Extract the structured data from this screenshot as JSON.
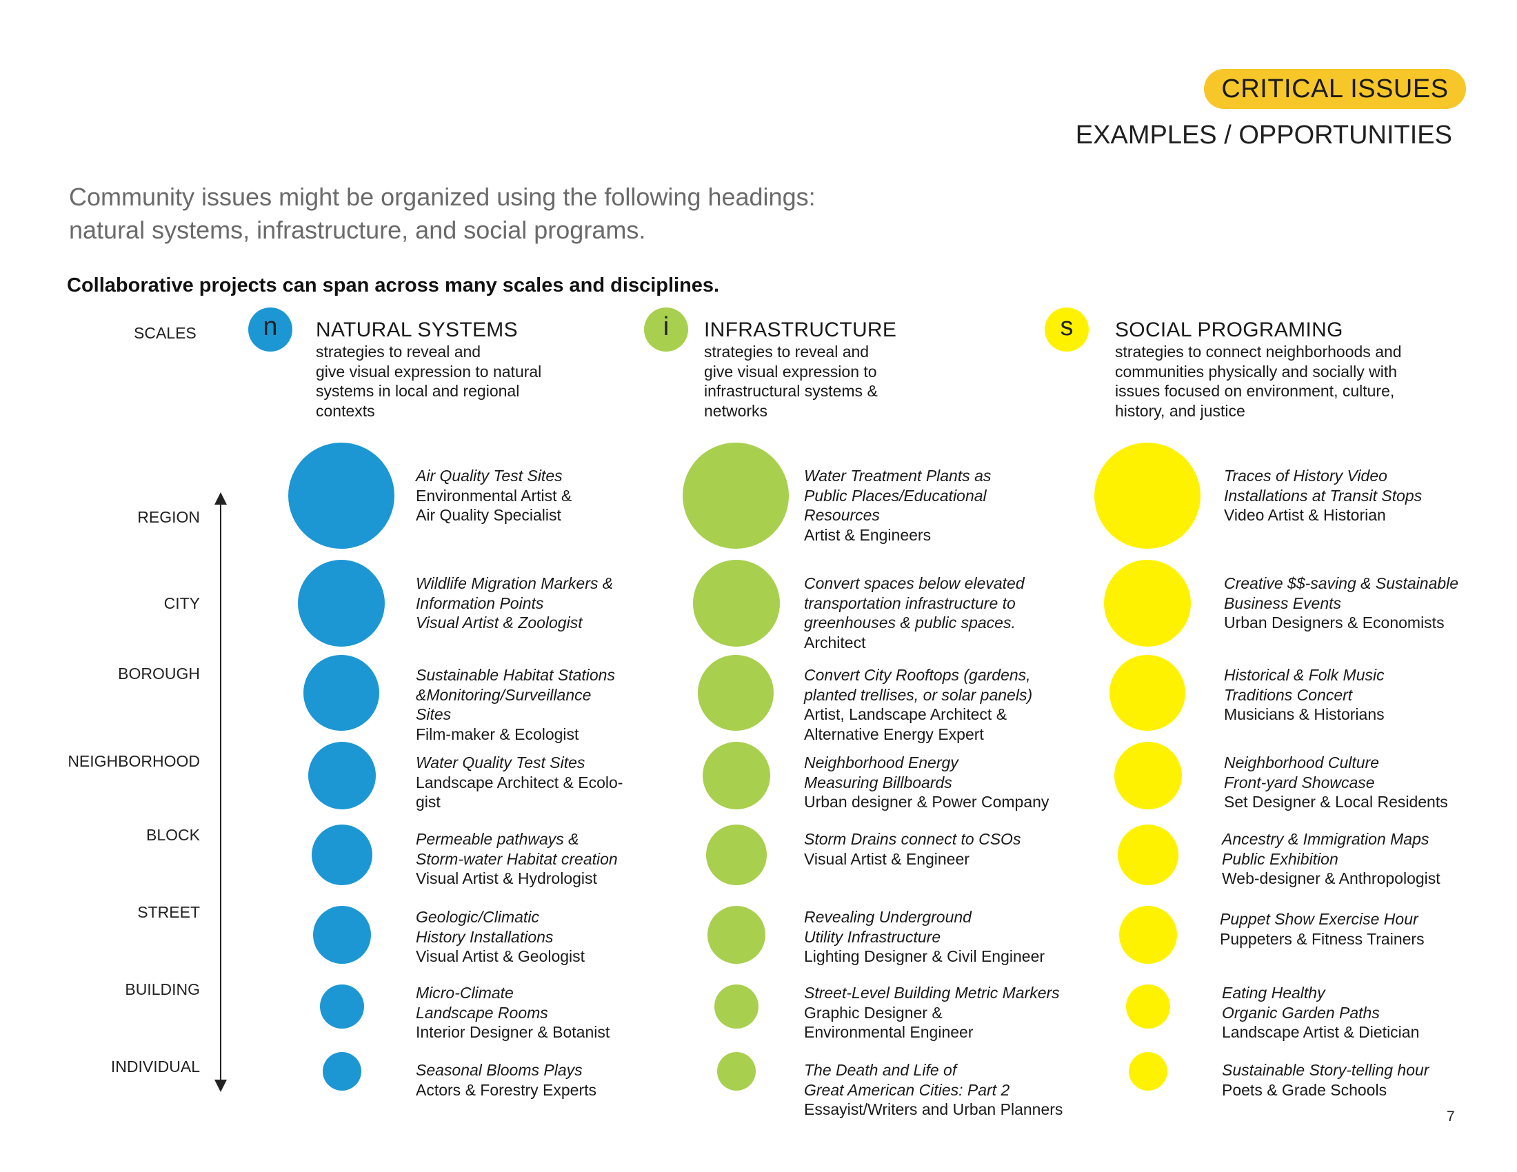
{
  "header": {
    "badge": "CRITICAL ISSUES",
    "subtitle": "EXAMPLES / OPPORTUNITIES"
  },
  "intro": {
    "line1": "Community issues might be organized using the following headings:",
    "line2": "natural systems, infrastructure, and social programs."
  },
  "lead": "Collaborative projects can span across many scales and disciplines.",
  "scales_label": "SCALES",
  "scales": [
    "REGION",
    "CITY",
    "BOROUGH",
    "NEIGHBORHOOD",
    "BLOCK",
    "STREET",
    "BUILDING",
    "INDIVIDUAL"
  ],
  "colors": {
    "natural": "#1c97d4",
    "infrastructure": "#a8cf4e",
    "social": "#fff200",
    "badge": "#f7c629"
  },
  "columns": {
    "natural": {
      "letter": "n",
      "title": "NATURAL SYSTEMS",
      "desc": [
        "strategies to reveal and",
        "give visual expression to natural",
        "systems in local and regional",
        "contexts"
      ],
      "items": [
        {
          "italic": [
            "Air Quality Test Sites"
          ],
          "normal": [
            "Environmental Artist &",
            "Air Quality Specialist"
          ]
        },
        {
          "italic": [
            "Wildlife Migration Markers &",
            "Information Points",
            "Visual Artist & Zoologist"
          ],
          "normal": []
        },
        {
          "italic": [
            "Sustainable Habitat Stations",
            "&Monitoring/Surveillance",
            "Sites"
          ],
          "normal": [
            "Film-maker & Ecologist"
          ]
        },
        {
          "italic": [
            "Water Quality Test Sites"
          ],
          "normal": [
            "Landscape Architect & Ecolo-",
            "gist"
          ]
        },
        {
          "italic": [
            "Permeable pathways &",
            "Storm-water Habitat creation"
          ],
          "normal": [
            "Visual Artist & Hydrologist"
          ]
        },
        {
          "italic": [
            "Geologic/Climatic",
            "History Installations"
          ],
          "normal": [
            "Visual Artist & Geologist"
          ]
        },
        {
          "italic": [
            "Micro-Climate",
            "Landscape Rooms"
          ],
          "normal": [
            "Interior Designer & Botanist"
          ]
        },
        {
          "italic": [
            "Seasonal Blooms Plays"
          ],
          "normal": [
            "Actors & Forestry Experts"
          ]
        }
      ]
    },
    "infrastructure": {
      "letter": "i",
      "title": "INFRASTRUCTURE",
      "desc": [
        "strategies to reveal and",
        "give visual expression to",
        "infrastructural systems &",
        "networks"
      ],
      "items": [
        {
          "italic": [
            "Water Treatment Plants as",
            "Public Places/Educational",
            "Resources"
          ],
          "normal": [
            "Artist & Engineers"
          ]
        },
        {
          "italic": [
            "Convert spaces below elevated",
            "transportation infrastructure to",
            "greenhouses & public spaces."
          ],
          "normal": [
            "Architect"
          ]
        },
        {
          "italic": [
            "Convert City Rooftops (gardens,",
            "planted trellises, or solar panels)"
          ],
          "normal": [
            "Artist, Landscape Architect &",
            "Alternative Energy Expert"
          ]
        },
        {
          "italic": [
            "Neighborhood Energy",
            "Measuring Billboards"
          ],
          "normal": [
            "Urban designer & Power Company"
          ]
        },
        {
          "italic": [
            "Storm Drains connect to CSOs"
          ],
          "normal": [
            "Visual Artist & Engineer"
          ]
        },
        {
          "italic": [
            "Revealing Underground",
            "Utility Infrastructure"
          ],
          "normal": [
            "Lighting Designer & Civil Engineer"
          ]
        },
        {
          "italic": [
            "Street-Level Building Metric Markers"
          ],
          "normal": [
            "Graphic Designer &",
            "Environmental Engineer"
          ]
        },
        {
          "italic": [
            "The Death and Life of",
            "Great American Cities: Part 2"
          ],
          "normal": [
            "Essayist/Writers and Urban Planners"
          ]
        }
      ]
    },
    "social": {
      "letter": "s",
      "title": "SOCIAL PROGRAMING",
      "desc": [
        "strategies to connect neighborhoods and",
        "communities physically and socially with",
        "issues focused on environment, culture,",
        "history, and justice"
      ],
      "items": [
        {
          "italic": [
            "Traces of History Video",
            "Installations at Transit Stops"
          ],
          "normal": [
            "Video Artist & Historian"
          ]
        },
        {
          "italic": [
            "Creative $$-saving & Sustainable",
            "Business Events"
          ],
          "normal": [
            "Urban Designers & Economists"
          ]
        },
        {
          "italic": [
            "Historical & Folk Music",
            "Traditions Concert"
          ],
          "normal": [
            "Musicians & Historians"
          ]
        },
        {
          "italic": [
            "Neighborhood Culture",
            "Front-yard Showcase"
          ],
          "normal": [
            "Set Designer & Local Residents"
          ]
        },
        {
          "italic": [
            "Ancestry & Immigration Maps",
            "Public Exhibition"
          ],
          "normal": [
            "Web-designer & Anthropologist"
          ]
        },
        {
          "italic": [
            "Puppet Show Exercise Hour"
          ],
          "normal": [
            "Puppeters & Fitness Trainers"
          ]
        },
        {
          "italic": [
            "Eating Healthy",
            "Organic Garden Paths"
          ],
          "normal": [
            "Landscape Artist & Dietician"
          ]
        },
        {
          "italic": [
            "Sustainable Story-telling hour"
          ],
          "normal": [
            "Poets & Grade Schools"
          ]
        }
      ]
    }
  },
  "page_number": "7"
}
